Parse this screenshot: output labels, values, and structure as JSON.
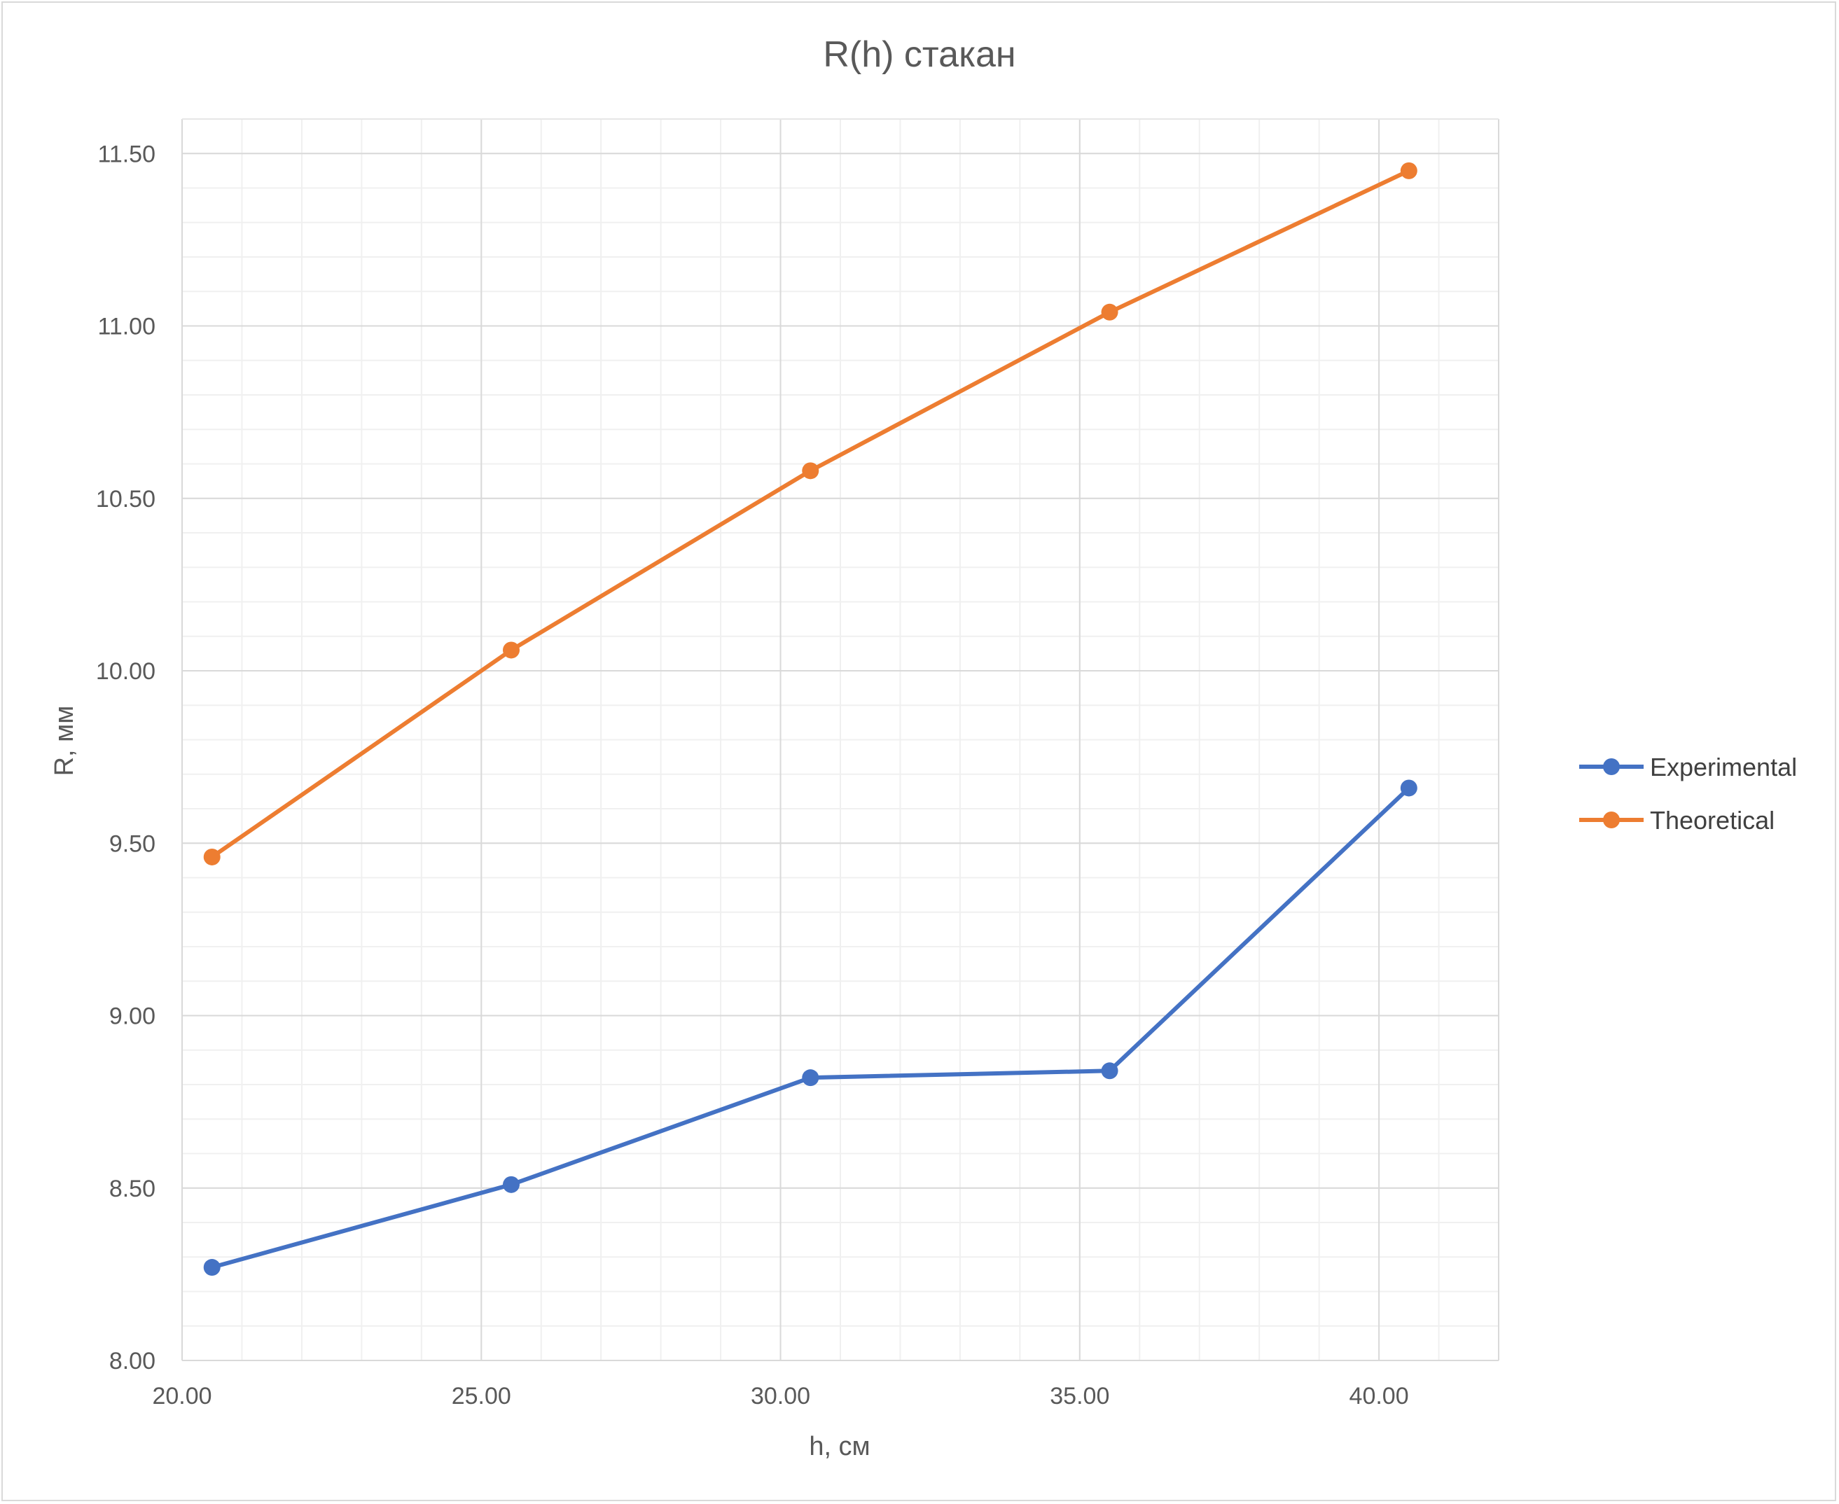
{
  "chart_data": {
    "type": "scatter",
    "title": "R(h) стакан",
    "xlabel": "h, см",
    "ylabel": "R, мм",
    "xlim": [
      20.0,
      42.0
    ],
    "ylim": [
      8.0,
      11.6
    ],
    "x_ticks": [
      "20.00",
      "25.00",
      "30.00",
      "35.00",
      "40.00"
    ],
    "y_ticks": [
      "8.00",
      "8.50",
      "9.00",
      "9.50",
      "10.00",
      "10.50",
      "11.00",
      "11.50"
    ],
    "grid": true,
    "minor_grid": true,
    "legend_position": "right",
    "series": [
      {
        "name": "Experimental",
        "color": "#4472c4",
        "x": [
          20.5,
          25.5,
          30.5,
          35.5,
          40.5
        ],
        "y": [
          8.27,
          8.51,
          8.82,
          8.84,
          9.66
        ]
      },
      {
        "name": "Theoretical",
        "color": "#ed7d31",
        "x": [
          20.5,
          25.5,
          30.5,
          35.5,
          40.5
        ],
        "y": [
          9.46,
          10.06,
          10.58,
          11.04,
          11.45
        ]
      }
    ]
  }
}
